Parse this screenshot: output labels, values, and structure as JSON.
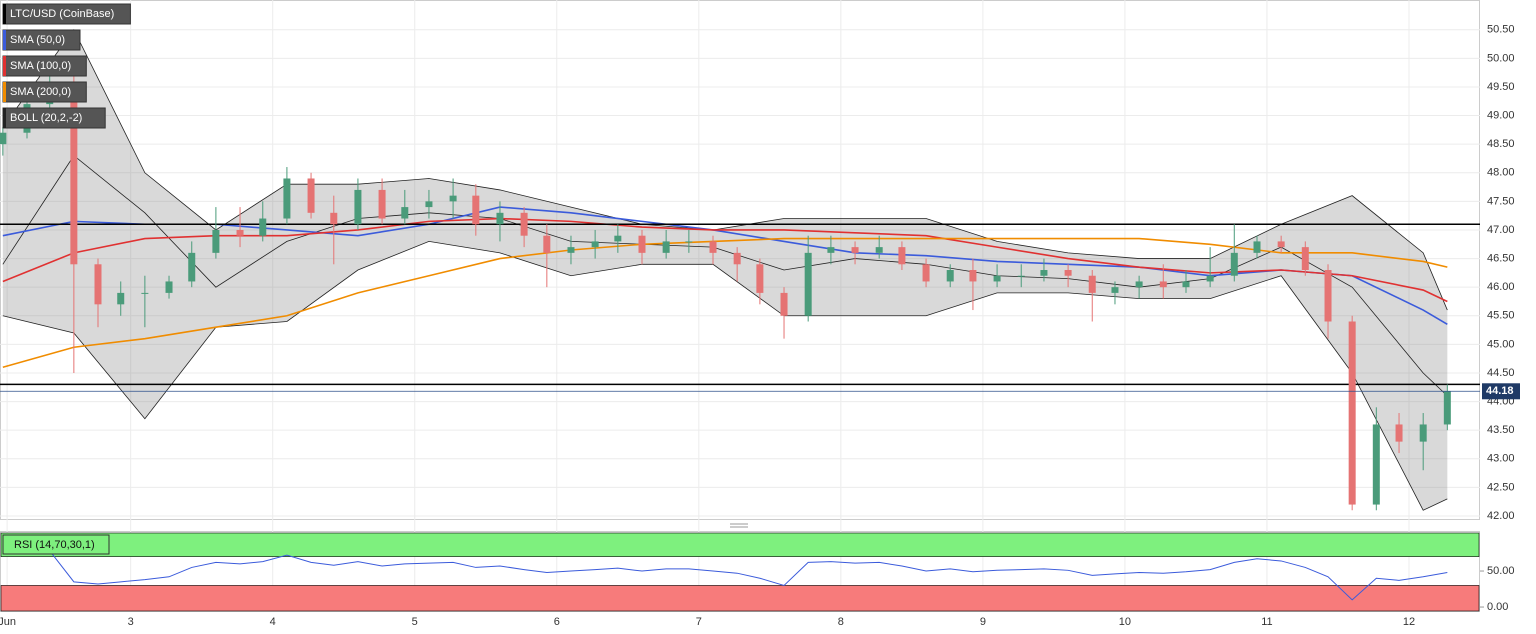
{
  "chart_data": [
    {
      "type": "candlestick",
      "title": "LTC/USD (CoinBase)",
      "x": [
        2.1,
        2.27,
        2.43,
        2.6,
        2.77,
        2.93,
        3.1,
        3.27,
        3.43,
        3.6,
        3.77,
        3.93,
        4.1,
        4.27,
        4.43,
        4.6,
        4.77,
        4.93,
        5.1,
        5.27,
        5.43,
        5.6,
        5.77,
        5.93,
        6.1,
        6.27,
        6.43,
        6.6,
        6.77,
        6.93,
        7.1,
        7.27,
        7.43,
        7.6,
        7.77,
        7.93,
        8.1,
        8.27,
        8.43,
        8.6,
        8.77,
        8.93,
        9.1,
        9.27,
        9.43,
        9.6,
        9.77,
        9.93,
        10.1,
        10.27,
        10.43,
        10.6,
        10.77,
        10.93,
        11.1,
        11.27,
        11.43,
        11.6,
        11.77,
        11.93,
        12.1,
        12.27
      ],
      "open": [
        48.5,
        48.7,
        49.2,
        49.5,
        46.4,
        45.7,
        45.9,
        45.9,
        46.1,
        46.6,
        47.0,
        46.9,
        47.2,
        47.9,
        47.3,
        47.1,
        47.7,
        47.2,
        47.4,
        47.5,
        47.6,
        47.1,
        47.3,
        46.9,
        46.6,
        46.7,
        46.8,
        46.9,
        46.6,
        46.8,
        46.8,
        46.6,
        46.4,
        45.9,
        45.5,
        46.6,
        46.7,
        46.6,
        46.7,
        46.4,
        46.1,
        46.3,
        46.1,
        46.2,
        46.2,
        46.3,
        46.2,
        45.9,
        46.0,
        46.1,
        46.0,
        46.1,
        46.2,
        46.6,
        46.8,
        46.7,
        46.3,
        45.4,
        42.2,
        43.6,
        43.3,
        43.6
      ],
      "high": [
        48.8,
        49.3,
        49.8,
        49.7,
        46.5,
        46.1,
        46.2,
        46.2,
        46.8,
        47.4,
        47.4,
        47.5,
        48.1,
        48.0,
        47.6,
        47.9,
        47.9,
        47.7,
        47.7,
        47.9,
        47.8,
        47.5,
        47.4,
        47.1,
        46.9,
        47.0,
        47.1,
        47.0,
        47.0,
        47.0,
        46.9,
        46.7,
        46.5,
        46.0,
        46.9,
        46.9,
        46.8,
        46.9,
        46.8,
        46.5,
        46.4,
        46.5,
        46.4,
        46.4,
        46.5,
        46.4,
        46.3,
        46.1,
        46.2,
        46.4,
        46.3,
        46.7,
        47.1,
        46.9,
        46.9,
        46.8,
        46.4,
        45.5,
        43.9,
        43.8,
        43.8,
        44.3
      ],
      "low": [
        48.3,
        48.6,
        49.1,
        44.5,
        45.3,
        45.5,
        45.3,
        45.8,
        46.0,
        46.5,
        46.7,
        46.8,
        47.1,
        47.2,
        46.4,
        47.0,
        47.1,
        47.1,
        47.2,
        47.2,
        46.9,
        46.8,
        46.7,
        46.0,
        46.4,
        46.5,
        46.6,
        46.4,
        46.5,
        46.6,
        46.4,
        46.1,
        45.7,
        45.1,
        45.4,
        46.4,
        46.4,
        46.5,
        46.3,
        46.0,
        46.0,
        45.6,
        46.0,
        46.0,
        46.1,
        46.0,
        45.4,
        45.7,
        45.8,
        45.8,
        45.9,
        46.0,
        46.1,
        46.5,
        46.6,
        46.2,
        45.1,
        42.1,
        42.1,
        43.1,
        42.8,
        43.5
      ],
      "close": [
        48.7,
        49.2,
        49.5,
        46.4,
        45.7,
        45.9,
        45.9,
        46.1,
        46.6,
        47.0,
        46.9,
        47.2,
        47.9,
        47.3,
        47.1,
        47.7,
        47.2,
        47.4,
        47.5,
        47.6,
        47.1,
        47.3,
        46.9,
        46.6,
        46.7,
        46.8,
        46.9,
        46.6,
        46.8,
        46.8,
        46.6,
        46.4,
        45.9,
        45.5,
        46.6,
        46.7,
        46.6,
        46.7,
        46.4,
        46.1,
        46.3,
        46.1,
        46.2,
        46.2,
        46.3,
        46.2,
        45.9,
        46.0,
        46.1,
        46.0,
        46.1,
        46.2,
        46.6,
        46.8,
        46.7,
        46.3,
        45.4,
        42.2,
        43.6,
        43.3,
        43.6,
        44.18
      ],
      "up_color": "#4a9b7a",
      "down_color": "#e57373",
      "xlim": [
        2.08,
        12.5
      ],
      "xticks": [
        {
          "value": 2.13,
          "label": "Jun"
        },
        3,
        4,
        5,
        6,
        7,
        8,
        9,
        10,
        11,
        12
      ],
      "ylim": [
        41.93,
        51.02
      ],
      "yticks": [
        {
          "value": 42,
          "label": "42.00"
        },
        {
          "value": 42.5,
          "label": "42.50"
        },
        {
          "value": 43,
          "label": "43.00"
        },
        {
          "value": 43.5,
          "label": "43.50"
        },
        {
          "value": 44,
          "label": "44.00"
        },
        {
          "value": 44.5,
          "label": "44.50"
        },
        {
          "value": 45,
          "label": "45.00"
        },
        {
          "value": 45.5,
          "label": "45.50"
        },
        {
          "value": 46,
          "label": "46.00"
        },
        {
          "value": 46.5,
          "label": "46.50"
        },
        {
          "value": 47,
          "label": "47.00"
        },
        {
          "value": 47.5,
          "label": "47.50"
        },
        {
          "value": 48,
          "label": "48.00"
        },
        {
          "value": 48.5,
          "label": "48.50"
        },
        {
          "value": 49,
          "label": "49.00"
        },
        {
          "value": 49.5,
          "label": "49.50"
        },
        {
          "value": 50,
          "label": "50.00"
        },
        {
          "value": 50.5,
          "label": "50.50"
        }
      ],
      "grid": true,
      "hlines": [
        47.1,
        44.3
      ],
      "overlay_x": [
        2.1,
        2.6,
        3.1,
        3.6,
        4.1,
        4.6,
        5.1,
        5.6,
        6.1,
        6.6,
        7.1,
        7.6,
        8.1,
        8.6,
        9.1,
        9.6,
        10.1,
        10.6,
        11.1,
        11.6,
        12.1,
        12.27
      ],
      "overlays": [
        {
          "name": "SMA (50,0)",
          "color": "#3b5bdb",
          "values": [
            46.9,
            47.15,
            47.1,
            47.1,
            47.0,
            46.9,
            47.1,
            47.4,
            47.3,
            47.15,
            47.0,
            46.8,
            46.6,
            46.55,
            46.45,
            46.4,
            46.35,
            46.2,
            46.3,
            46.2,
            45.6,
            45.35
          ]
        },
        {
          "name": "SMA (100,0)",
          "color": "#e03131",
          "values": [
            46.1,
            46.6,
            46.85,
            46.9,
            46.9,
            47.0,
            47.15,
            47.2,
            47.15,
            47.05,
            47.0,
            47.0,
            46.95,
            46.9,
            46.7,
            46.5,
            46.35,
            46.25,
            46.3,
            46.2,
            45.95,
            45.75
          ]
        },
        {
          "name": "SMA (200,0)",
          "color": "#f08c00",
          "values": [
            44.6,
            44.95,
            45.1,
            45.3,
            45.5,
            45.9,
            46.2,
            46.5,
            46.65,
            46.75,
            46.8,
            46.85,
            46.85,
            46.85,
            46.85,
            46.85,
            46.85,
            46.75,
            46.6,
            46.6,
            46.45,
            46.35
          ]
        }
      ],
      "boll": {
        "name": "BOLL (20,2,-2)",
        "color": "#222222",
        "upper": [
          48.8,
          50.5,
          48.0,
          47.0,
          47.8,
          47.8,
          47.9,
          47.7,
          47.4,
          47.1,
          47.0,
          47.2,
          47.2,
          47.2,
          46.8,
          46.6,
          46.5,
          46.5,
          47.1,
          47.6,
          46.6,
          45.6
        ],
        "middle": [
          46.4,
          48.3,
          47.3,
          46.0,
          46.8,
          47.2,
          47.3,
          47.2,
          46.8,
          46.75,
          46.7,
          46.3,
          46.5,
          46.4,
          46.2,
          46.15,
          46.0,
          46.15,
          46.7,
          46.0,
          44.5,
          44.1
        ],
        "lower": [
          45.5,
          45.2,
          43.7,
          45.3,
          45.4,
          46.3,
          46.8,
          46.6,
          46.2,
          46.4,
          46.4,
          45.5,
          45.5,
          45.5,
          45.9,
          45.9,
          45.8,
          45.8,
          46.2,
          44.5,
          42.1,
          42.3
        ]
      }
    },
    {
      "type": "rsi",
      "title": "RSI (14,70,30,1)",
      "x": [
        2.1,
        2.27,
        2.43,
        2.6,
        2.77,
        2.93,
        3.1,
        3.27,
        3.43,
        3.6,
        3.77,
        3.93,
        4.1,
        4.27,
        4.43,
        4.6,
        4.77,
        4.93,
        5.1,
        5.27,
        5.43,
        5.6,
        5.77,
        5.93,
        6.1,
        6.27,
        6.43,
        6.6,
        6.77,
        6.93,
        7.1,
        7.27,
        7.43,
        7.6,
        7.77,
        7.93,
        8.1,
        8.27,
        8.43,
        8.6,
        8.77,
        8.93,
        9.1,
        9.27,
        9.43,
        9.6,
        9.77,
        9.93,
        10.1,
        10.27,
        10.43,
        10.6,
        10.77,
        10.93,
        11.1,
        11.27,
        11.43,
        11.6,
        11.77,
        11.93,
        12.1,
        12.27
      ],
      "values": [
        75,
        80,
        78,
        35,
        32,
        35,
        38,
        42,
        55,
        62,
        60,
        63,
        72,
        62,
        58,
        63,
        57,
        60,
        61,
        62,
        55,
        57,
        52,
        48,
        50,
        52,
        54,
        50,
        53,
        53,
        50,
        47,
        40,
        30,
        62,
        63,
        61,
        62,
        57,
        50,
        53,
        49,
        51,
        52,
        53,
        51,
        44,
        46,
        48,
        47,
        49,
        52,
        62,
        67,
        64,
        55,
        42,
        10,
        40,
        37,
        42,
        48
      ],
      "color": "#3b5bdb",
      "ylim": [
        -5.5,
        104.2
      ],
      "yticks": [
        {
          "value": 0,
          "label": "0.00"
        },
        {
          "value": 50,
          "label": "50.00"
        }
      ],
      "overbought": 70,
      "oversold": 30,
      "overbought_color": "#7ef07e",
      "oversold_color": "#f77b7b"
    }
  ]
}
